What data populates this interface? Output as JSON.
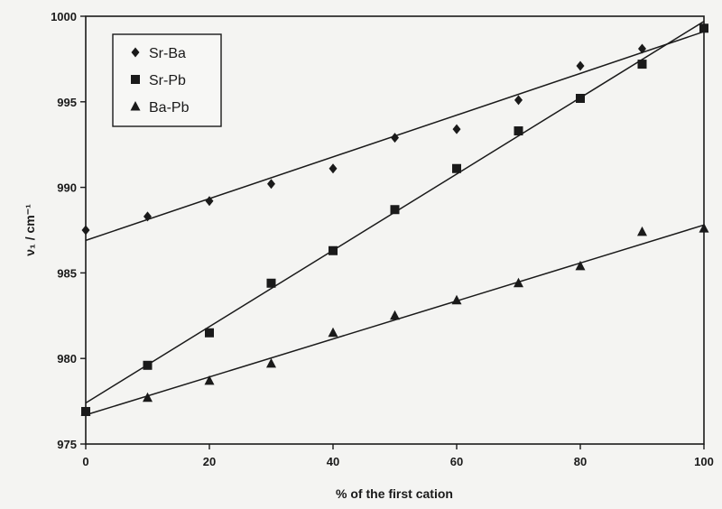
{
  "chart_data": {
    "type": "scatter",
    "title": "",
    "xlabel": "% of the first cation",
    "ylabel": "ν₁ / cm⁻¹",
    "xlim": [
      0,
      100
    ],
    "ylim": [
      975,
      1000
    ],
    "xticks": [
      0,
      20,
      40,
      60,
      80,
      100
    ],
    "yticks": [
      975,
      980,
      985,
      990,
      995,
      1000
    ],
    "grid": false,
    "legend_position": "top-left",
    "series": [
      {
        "name": "Sr-Ba",
        "marker": "diamond",
        "x": [
          0,
          10,
          20,
          30,
          40,
          50,
          60,
          70,
          80,
          90,
          100
        ],
        "y": [
          987.5,
          988.3,
          989.2,
          990.2,
          991.1,
          992.9,
          993.4,
          995.1,
          997.1,
          998.1,
          999.3
        ],
        "fit": [
          [
            0,
            986.9
          ],
          [
            100,
            999.1
          ]
        ]
      },
      {
        "name": "Sr-Pb",
        "marker": "square",
        "x": [
          0,
          10,
          20,
          30,
          40,
          50,
          60,
          70,
          80,
          90,
          100
        ],
        "y": [
          976.9,
          979.6,
          981.5,
          984.4,
          986.3,
          988.7,
          991.1,
          993.3,
          995.2,
          997.2,
          999.3
        ],
        "fit": [
          [
            0,
            977.4
          ],
          [
            100,
            999.7
          ]
        ]
      },
      {
        "name": "Ba-Pb",
        "marker": "triangle",
        "x": [
          0,
          10,
          20,
          30,
          40,
          50,
          60,
          70,
          80,
          90,
          100
        ],
        "y": [
          976.9,
          977.7,
          978.7,
          979.7,
          981.5,
          982.5,
          983.4,
          984.4,
          985.4,
          987.4,
          987.6
        ],
        "fit": [
          [
            0,
            976.7
          ],
          [
            100,
            987.8
          ]
        ]
      }
    ],
    "colors": {
      "ink": "#1a1a1a",
      "background": "#f4f4f2"
    }
  }
}
